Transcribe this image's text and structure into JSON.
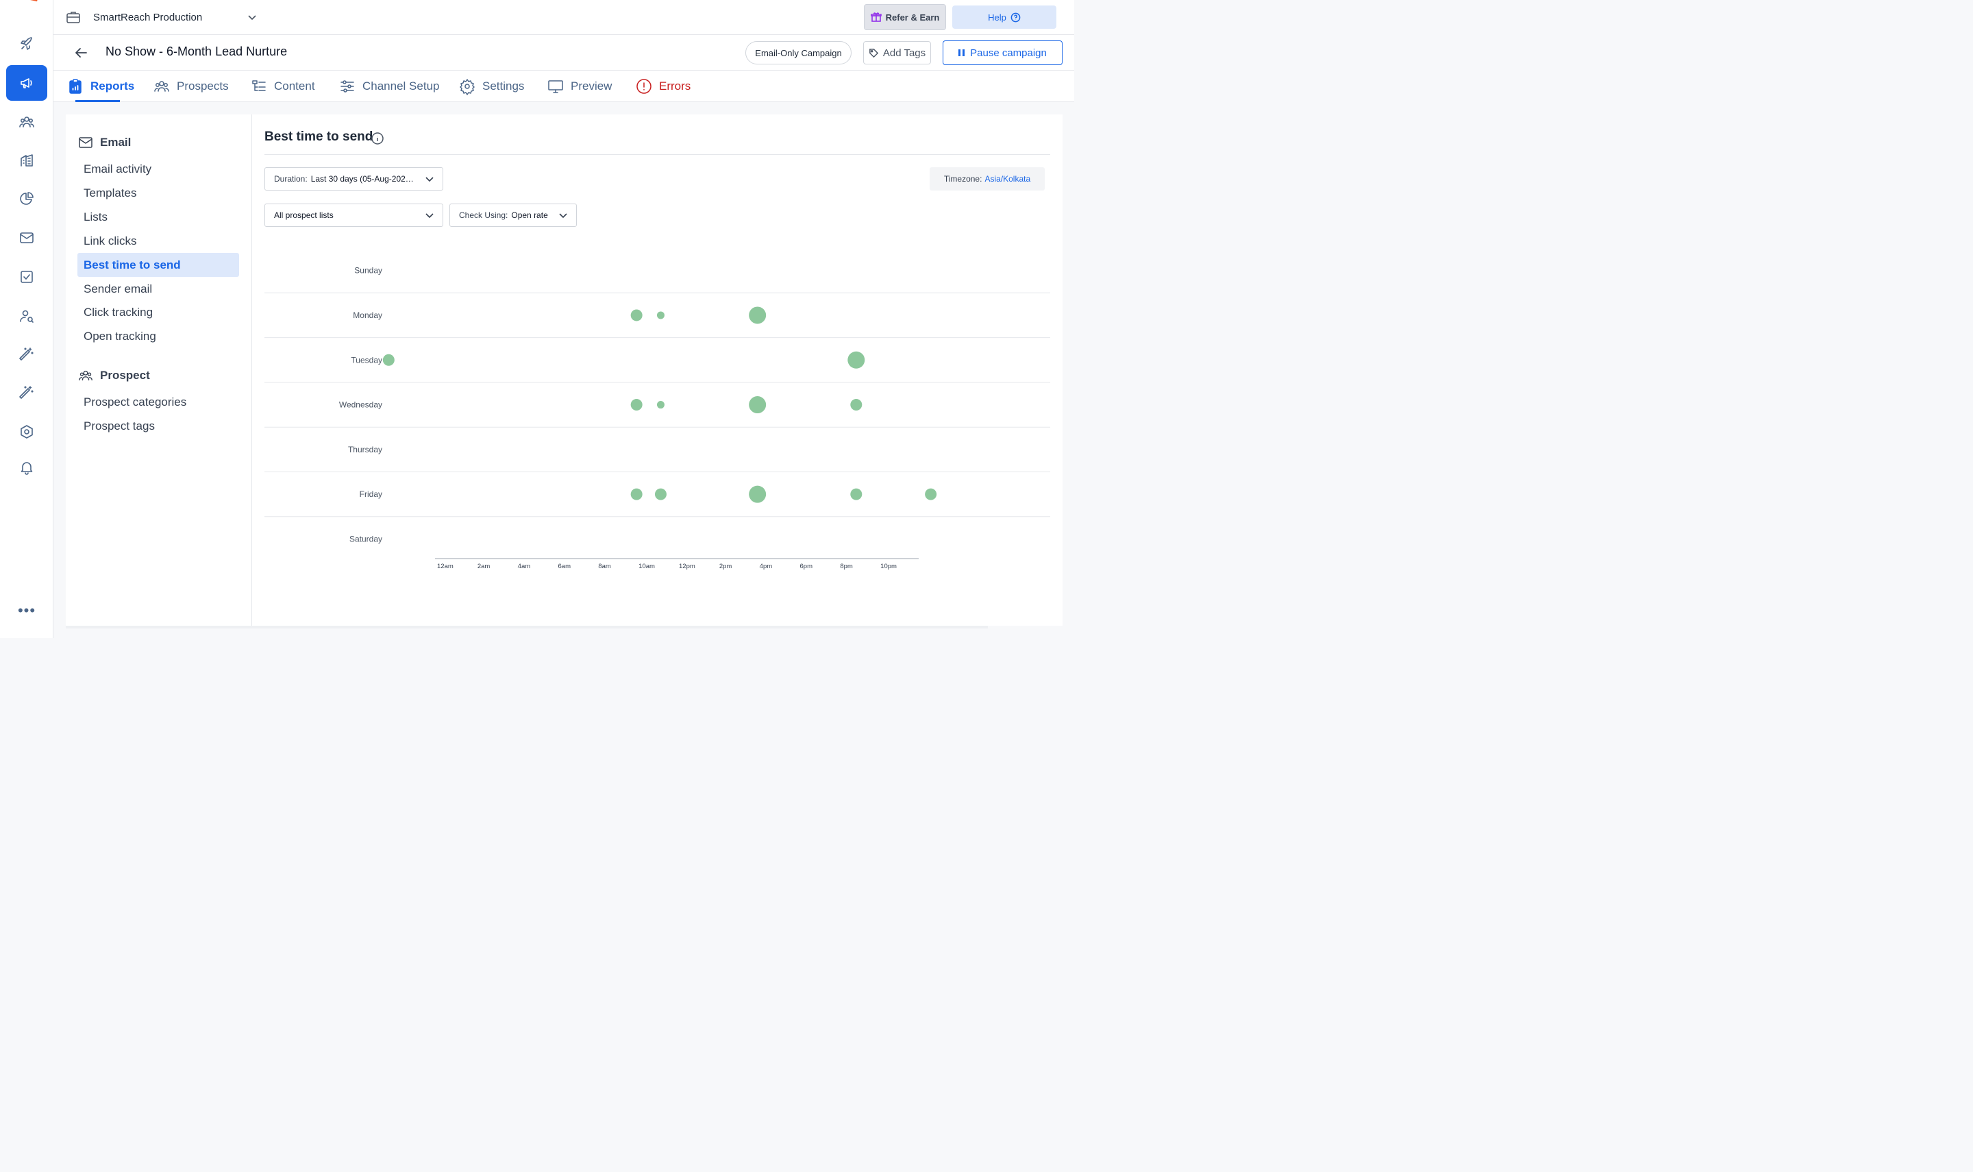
{
  "workspace": {
    "name": "SmartReach Production"
  },
  "header": {
    "refer_label": "Refer & Earn",
    "help_label": "Help"
  },
  "campaign": {
    "title": "No Show - 6-Month Lead Nurture",
    "type_badge": "Email-Only Campaign",
    "add_tags_label": "Add Tags",
    "pause_label": "Pause campaign"
  },
  "tabs": [
    {
      "label": "Reports",
      "icon": "clipboard-chart-icon",
      "active": true
    },
    {
      "label": "Prospects",
      "icon": "users-icon"
    },
    {
      "label": "Content",
      "icon": "list-tree-icon"
    },
    {
      "label": "Channel Setup",
      "icon": "sliders-icon"
    },
    {
      "label": "Settings",
      "icon": "gear-icon"
    },
    {
      "label": "Preview",
      "icon": "monitor-icon"
    },
    {
      "label": "Errors",
      "icon": "alert-circle-icon",
      "color": "#c81e1e"
    }
  ],
  "subnav": {
    "email_heading": "Email",
    "email_items": [
      "Email activity",
      "Templates",
      "Lists",
      "Link clicks",
      "Best time to send",
      "Sender email",
      "Click tracking",
      "Open tracking"
    ],
    "active_item": "Best time to send",
    "prospect_heading": "Prospect",
    "prospect_items": [
      "Prospect categories",
      "Prospect tags"
    ]
  },
  "report": {
    "title": "Best time to send",
    "duration_label": "Duration:",
    "duration_value": "Last 30 days (05-Aug-202…",
    "list_value": "All prospect lists",
    "check_label": "Check Using:",
    "check_value": "Open rate",
    "timezone_label": "Timezone:",
    "timezone_value": "Asia/Kolkata"
  },
  "chart_data": {
    "type": "scatter",
    "title": "",
    "xlabel": "",
    "ylabel": "",
    "xlim": [
      0,
      24
    ],
    "x_ticks": [
      "12am",
      "2am",
      "4am",
      "6am",
      "8am",
      "10am",
      "12pm",
      "2pm",
      "4pm",
      "6pm",
      "8pm",
      "10pm"
    ],
    "categories": [
      "Sunday",
      "Monday",
      "Tuesday",
      "Wednesday",
      "Thursday",
      "Friday",
      "Saturday"
    ],
    "marker_color": "#8cc79b",
    "points": [
      {
        "day": "Monday",
        "hour": 10,
        "size": 2
      },
      {
        "day": "Monday",
        "hour": 11.2,
        "size": 1
      },
      {
        "day": "Monday",
        "hour": 16,
        "size": 3
      },
      {
        "day": "Tuesday",
        "hour": -2.3,
        "size": 2
      },
      {
        "day": "Tuesday",
        "hour": 20.9,
        "size": 3
      },
      {
        "day": "Wednesday",
        "hour": 10,
        "size": 2
      },
      {
        "day": "Wednesday",
        "hour": 11.2,
        "size": 1
      },
      {
        "day": "Wednesday",
        "hour": 16,
        "size": 3
      },
      {
        "day": "Wednesday",
        "hour": 20.9,
        "size": 2
      },
      {
        "day": "Friday",
        "hour": 10,
        "size": 2
      },
      {
        "day": "Friday",
        "hour": 11.2,
        "size": 2
      },
      {
        "day": "Friday",
        "hour": 16,
        "size": 3
      },
      {
        "day": "Friday",
        "hour": 20.9,
        "size": 2
      },
      {
        "day": "Friday",
        "hour": 24.6,
        "size": 2
      }
    ]
  },
  "rail": {
    "items": [
      "rocket-icon",
      "megaphone-icon",
      "users-icon",
      "building-icon",
      "pie-chart-icon",
      "mail-icon",
      "task-check-icon",
      "user-search-icon",
      "magic-wand-icon",
      "magic-wand-2-icon",
      "hexagon-settings-icon",
      "bell-icon"
    ],
    "active": "megaphone-icon",
    "more_label": "•••"
  }
}
